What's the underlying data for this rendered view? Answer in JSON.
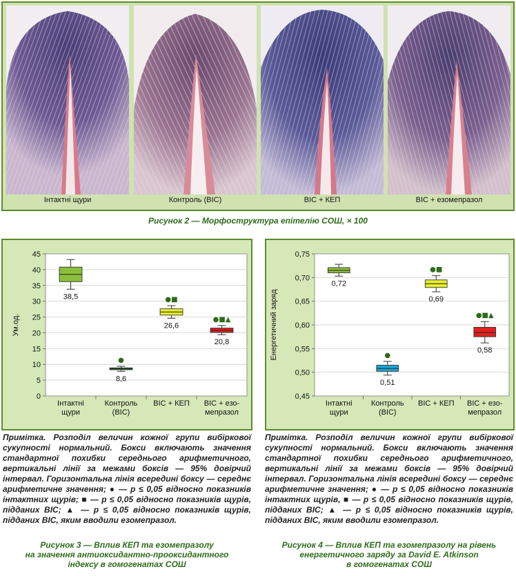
{
  "figure2": {
    "labels": [
      "Інтактні щури",
      "Контроль (ВІС)",
      "ВІС + КЕП",
      "ВІС + езомепразол"
    ],
    "caption": "Рисунок 2 — Морфоструктура епітелію СОШ, × 100"
  },
  "chart3": {
    "note": "Примітка. Розподіл величин кожної групи вибіркової сукупності нормальний. Бокси включають значення стандартної похибки середнього арифметичного, вертикальні лінії за межами боксів — 95% довірчий інтервал. Горизонтальна лінія всередині боксу — середнє арифметичне значення; ● — р ≤ 0,05 відносно показників інтактних щурів; ■ — р ≤ 0,05 відносно показників щурів, підданих ВІС; ▲ — р ≤ 0,05 відносно показників щурів, підданих ВІС, яким вводили езомепразол.",
    "caption_lines": [
      "Рисунок 3 — Вплив КЕП та езомепразолу",
      "на значення антиоксидантно-прооксидантного",
      "індексу в гомогенатах СОШ"
    ]
  },
  "chart4": {
    "note": "Примітка. Розподіл величин кожної групи вибіркової сукупності нормальний. Бокси включають значення стандартної похибки середнього арифметичного, вертикальні лінії за межами боксів — 95% довірчий інтервал. Горизонтальна лінія всередині боксу — середнє арифметичне значення; ● — р ≤ 0,05 відносно показників інтактних щурів, ■ — р ≤ 0,05 відносно показників щурів, підданих ВІС; ▲ — р ≤ 0,05 відносно показників щурів, підданих ВІС, яким вводили езомепразол.",
    "caption_lines": [
      "Рисунок 4 — Вплив КЕП та езомепразолу на рівень",
      "енергетичного заряду за David E. Atkinson",
      "в гомогенатах СОШ"
    ]
  },
  "chart_data": [
    {
      "type": "box",
      "title": "",
      "ylabel": "Ум.од.",
      "ylim": [
        0,
        45
      ],
      "yticks": [
        "0",
        "5",
        "10",
        "15",
        "20",
        "25",
        "30",
        "35",
        "40",
        "45"
      ],
      "categories": [
        [
          "Інтактні",
          "щури"
        ],
        [
          "Контроль",
          "(ВІС)"
        ],
        [
          "ВІС + КЕП"
        ],
        [
          "ВІС + езо-",
          "мепразол"
        ]
      ],
      "mean_labels": [
        "38,5",
        "8,6",
        "26,6",
        "20,8"
      ],
      "means": [
        38.5,
        8.6,
        26.6,
        20.8
      ],
      "box_low": [
        36.2,
        8.3,
        25.6,
        20.1
      ],
      "box_high": [
        40.8,
        8.9,
        27.6,
        21.5
      ],
      "whisker_low": [
        33.8,
        7.8,
        24.6,
        19.4
      ],
      "whisker_high": [
        43.2,
        9.4,
        28.6,
        22.3
      ],
      "significance": [
        "",
        "●",
        "●■",
        "●■▲"
      ],
      "colors": [
        "#8cbf3c",
        "#2e8a2e",
        "#e8ee2a",
        "#e02020"
      ],
      "grid": true
    },
    {
      "type": "box",
      "title": "",
      "ylabel": "Енергетичний заряд",
      "ylim": [
        0.45,
        0.75
      ],
      "yticks": [
        "0,45",
        "0,50",
        "0,55",
        "0,60",
        "0,65",
        "0,70",
        "0,75"
      ],
      "categories": [
        [
          "Інтактні",
          "щури"
        ],
        [
          "Контроль",
          "(ВІС)"
        ],
        [
          "ВІС + КЕП"
        ],
        [
          "ВІС + езо-",
          "мепразол"
        ]
      ],
      "mean_labels": [
        "0,72",
        "0,51",
        "0,69",
        "0,58"
      ],
      "means": [
        0.715,
        0.508,
        0.687,
        0.584
      ],
      "box_low": [
        0.71,
        0.502,
        0.679,
        0.575
      ],
      "box_high": [
        0.721,
        0.515,
        0.695,
        0.595
      ],
      "whisker_low": [
        0.703,
        0.494,
        0.67,
        0.562
      ],
      "whisker_high": [
        0.728,
        0.523,
        0.704,
        0.607
      ],
      "significance": [
        "",
        "●",
        "●■",
        "●■▲"
      ],
      "colors": [
        "#8cbf3c",
        "#1aa6d8",
        "#e8ee2a",
        "#e02020"
      ],
      "grid": true
    }
  ]
}
